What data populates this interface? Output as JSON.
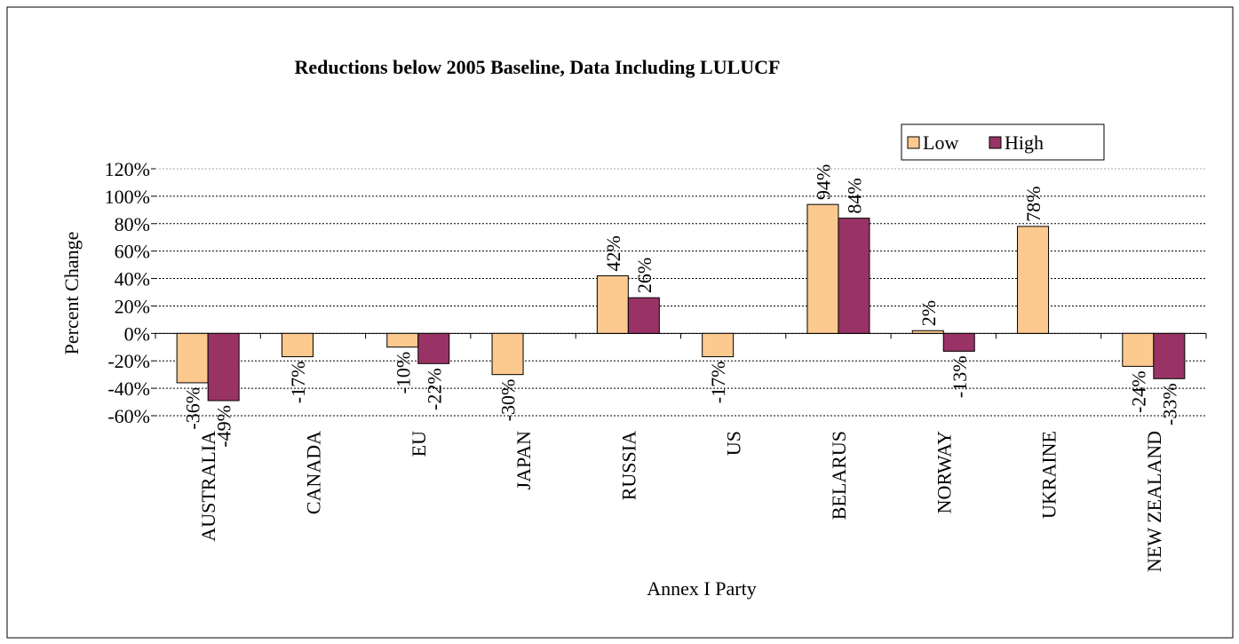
{
  "chart_data": {
    "type": "bar",
    "title": "Reductions below 2005 Baseline, Data Including LULUCF",
    "x_label": "Annex I Party",
    "y_label": "Percent Change",
    "categories": [
      "AUSTRALIA",
      "CANADA",
      "EU",
      "JAPAN",
      "RUSSIA",
      "US",
      "BELARUS",
      "NORWAY",
      "UKRAINE",
      "NEW ZEALAND"
    ],
    "series": [
      {
        "name": "Low",
        "color": "#fcc98f",
        "values": [
          -36,
          -17,
          -10,
          -30,
          42,
          -17,
          94,
          2,
          78,
          -24
        ],
        "value_labels": [
          "-36%",
          "-17%",
          "-10%",
          "-30%",
          "42%",
          "-17%",
          "94%",
          "2%",
          "78%",
          "-24%"
        ]
      },
      {
        "name": "High",
        "color": "#993366",
        "values": [
          -49,
          null,
          -22,
          null,
          26,
          null,
          84,
          -13,
          null,
          -33
        ],
        "value_labels": [
          "-49%",
          null,
          "-22%",
          null,
          "26%",
          null,
          "84%",
          "-13%",
          null,
          "-33%"
        ]
      }
    ],
    "ylim": [
      -60,
      120
    ],
    "yticks": [
      {
        "value": -60,
        "label": "-60%"
      },
      {
        "value": -40,
        "label": "-40%"
      },
      {
        "value": -20,
        "label": "-20%"
      },
      {
        "value": 0,
        "label": "0%"
      },
      {
        "value": 20,
        "label": "20%"
      },
      {
        "value": 40,
        "label": "40%"
      },
      {
        "value": 60,
        "label": "60%"
      },
      {
        "value": 80,
        "label": "80%"
      },
      {
        "value": 100,
        "label": "100%"
      },
      {
        "value": 120,
        "label": "120%"
      }
    ],
    "grid": true,
    "legend": "top-right"
  }
}
